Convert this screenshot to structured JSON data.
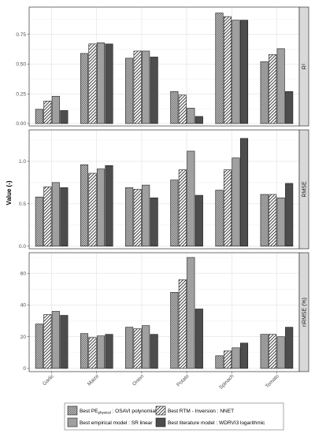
{
  "chart_data": {
    "type": "bar",
    "ylabel": "Value (-)",
    "categories": [
      "Garlic",
      "Maize",
      "Onion",
      "Potato",
      "Spinach",
      "Tomato"
    ],
    "series": [
      {
        "name": "Best PE",
        "name_sub": "physical",
        "name_rest": " : OSAVI polynomial",
        "pattern": "grid"
      },
      {
        "name": "Best RTM - Inversion : NNET",
        "pattern": "hatch"
      },
      {
        "name": "Best empirical model : SR linear",
        "pattern": "solid-light"
      },
      {
        "name": "Best literature model : WDRVI3 logarithmic",
        "pattern": "solid-dark"
      }
    ],
    "legend_position": "bottom",
    "grid": true,
    "panels": [
      {
        "strip": "R²",
        "ylim": [
          -0.02,
          0.98
        ],
        "ticks": [
          0.0,
          0.25,
          0.5,
          0.75
        ],
        "tick_labels": [
          "0.00",
          "0.25",
          "0.50",
          "0.75"
        ],
        "values": [
          [
            0.12,
            0.19,
            0.23,
            0.11
          ],
          [
            0.59,
            0.67,
            0.68,
            0.67
          ],
          [
            0.55,
            0.61,
            0.61,
            0.56
          ],
          [
            0.27,
            0.24,
            0.13,
            0.06
          ],
          [
            0.93,
            0.9,
            0.87,
            0.87
          ],
          [
            0.52,
            0.58,
            0.63,
            0.27
          ]
        ]
      },
      {
        "strip": "RMSE",
        "ylim": [
          -0.03,
          1.37
        ],
        "ticks": [
          0.0,
          0.5,
          1.0
        ],
        "tick_labels": [
          "0.0",
          "0.5",
          "1.0"
        ],
        "values": [
          [
            0.58,
            0.7,
            0.75,
            0.69
          ],
          [
            0.96,
            0.86,
            0.91,
            0.95
          ],
          [
            0.69,
            0.67,
            0.72,
            0.57
          ],
          [
            0.78,
            0.9,
            1.12,
            0.6
          ],
          [
            0.66,
            0.9,
            1.04,
            1.27
          ],
          [
            0.61,
            0.61,
            0.57,
            0.74
          ]
        ]
      },
      {
        "strip": "nRMSE (%)",
        "ylim": [
          -2,
          73
        ],
        "ticks": [
          0,
          20,
          40,
          60
        ],
        "tick_labels": [
          "0",
          "20",
          "40",
          "60"
        ],
        "values": [
          [
            28,
            34,
            36,
            33.5
          ],
          [
            22,
            19.5,
            20.5,
            21.5
          ],
          [
            26,
            25,
            27,
            21.5
          ],
          [
            48,
            56,
            70,
            37.5
          ],
          [
            8,
            11,
            13,
            16
          ],
          [
            21.5,
            21.5,
            20,
            26
          ]
        ]
      }
    ]
  }
}
